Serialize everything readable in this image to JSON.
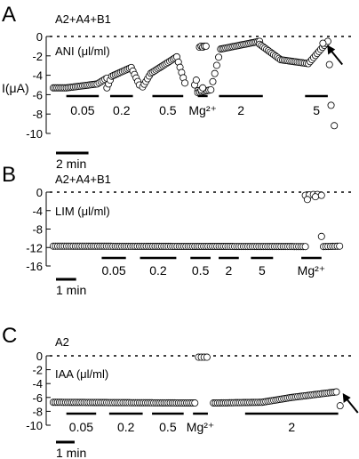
{
  "chart_data": [
    {
      "type": "scatter",
      "panel_letter": "A",
      "group_label": "A2+A4+B1",
      "drug_label": "ANI (μl/ml)",
      "ylabel": "I(μA)",
      "yticks": [
        "0",
        "-2",
        "-4",
        "-6",
        "-8",
        "-10"
      ],
      "ylim": [
        -10,
        0
      ],
      "time_max_min": 18,
      "scale_bar_label": "2 min",
      "scale_bar_min": 2,
      "zero_line": true,
      "bars": [
        {
          "label": "0.05",
          "start_min": 0.8,
          "end_min": 2.8
        },
        {
          "label": "0.2",
          "start_min": 3.5,
          "end_min": 4.9
        },
        {
          "label": "0.5",
          "start_min": 6.1,
          "end_min": 8.0
        },
        {
          "label": "Mg²⁺",
          "start_min": 8.9,
          "end_min": 9.5
        },
        {
          "label": "2",
          "start_min": 10.2,
          "end_min": 12.9
        },
        {
          "label": "5",
          "start_min": 15.5,
          "end_min": 16.9
        }
      ],
      "series": [
        {
          "segments": [
            {
              "x": [
                0.0,
                0.8,
                2.7,
                3.3
              ],
              "y": [
                -5.3,
                -5.3,
                -4.9,
                -4.3
              ]
            },
            {
              "x": [
                3.3,
                3.6,
                4.8,
                5.3
              ],
              "y": [
                -5.3,
                -4.1,
                -3.2,
                -5.0
              ]
            },
            {
              "x": [
                5.5,
                6.0,
                7.6,
                8.1
              ],
              "y": [
                -5.2,
                -3.8,
                -2.1,
                -4.8
              ]
            },
            {
              "x": [
                8.7,
                8.8,
                8.9
              ],
              "y": [
                -5.0,
                -4.5,
                -5.6
              ]
            },
            {
              "x": [
                8.9,
                9.7,
                10.3,
                12.7
              ],
              "y": [
                -5.8,
                -5.5,
                -1.3,
                -0.5
              ]
            },
            {
              "x": [
                12.7,
                14.0,
                15.7,
                16.9
              ],
              "y": [
                -0.8,
                -2.4,
                -2.8,
                -0.5
              ]
            }
          ],
          "extra_points": [
            {
              "x": 9.0,
              "y": -1.1
            },
            {
              "x": 9.1,
              "y": -1.0
            },
            {
              "x": 9.2,
              "y": -1.1
            },
            {
              "x": 9.3,
              "y": -1.0
            },
            {
              "x": 9.4,
              "y": -1.0
            },
            {
              "x": 9.1,
              "y": -5.5
            },
            {
              "x": 9.2,
              "y": -5.3
            },
            {
              "x": 16.6,
              "y": -0.7
            },
            {
              "x": 17.0,
              "y": -2.9
            },
            {
              "x": 17.1,
              "y": -7.1
            },
            {
              "x": 17.3,
              "y": -9.2
            }
          ]
        }
      ],
      "arrow": {
        "x_min": 16.7,
        "y": -0.6
      }
    },
    {
      "type": "scatter",
      "panel_letter": "B",
      "group_label": "A2+A4+B1",
      "drug_label": "LIM (μl/ml)",
      "yticks": [
        "0",
        "-4",
        "-8",
        "-12",
        "-16"
      ],
      "ylim": [
        -16,
        0
      ],
      "time_max_min": 14.5,
      "scale_bar_label": "1 min",
      "scale_bar_min": 1,
      "zero_line": true,
      "bars": [
        {
          "label": "0.05",
          "start_min": 2.4,
          "end_min": 3.6
        },
        {
          "label": "0.2",
          "start_min": 4.3,
          "end_min": 6.1
        },
        {
          "label": "0.5",
          "start_min": 6.8,
          "end_min": 7.8
        },
        {
          "label": "2",
          "start_min": 8.2,
          "end_min": 9.2
        },
        {
          "label": "5",
          "start_min": 9.8,
          "end_min": 10.9
        },
        {
          "label": "Mg²⁺",
          "start_min": 12.3,
          "end_min": 13.3
        }
      ],
      "series": [
        {
          "segments": [
            {
              "x": [
                0.0,
                12.5
              ],
              "y": [
                -11.7,
                -11.8
              ]
            },
            {
              "x": [
                13.4,
                14.2
              ],
              "y": [
                -11.8,
                -11.7
              ]
            }
          ],
          "extra_points": [
            {
              "x": 12.5,
              "y": -0.7
            },
            {
              "x": 12.7,
              "y": -0.6
            },
            {
              "x": 12.9,
              "y": -0.5
            },
            {
              "x": 13.1,
              "y": -0.5
            },
            {
              "x": 13.3,
              "y": -0.7
            },
            {
              "x": 12.6,
              "y": -1.6
            },
            {
              "x": 13.0,
              "y": -1.0
            },
            {
              "x": 13.3,
              "y": -9.6
            }
          ]
        }
      ]
    },
    {
      "type": "scatter",
      "panel_letter": "C",
      "group_label": "A2",
      "drug_label": "IAA (μl/ml)",
      "yticks": [
        "0",
        "-2",
        "-4",
        "-6",
        "-8",
        "-10"
      ],
      "ylim": [
        -10,
        0
      ],
      "time_max_min": 15.7,
      "scale_bar_label": "1 min",
      "scale_bar_min": 1,
      "zero_line": true,
      "bars": [
        {
          "label": "0.05",
          "start_min": 0.7,
          "end_min": 2.3
        },
        {
          "label": "0.2",
          "start_min": 3.0,
          "end_min": 4.8
        },
        {
          "label": "0.5",
          "start_min": 5.3,
          "end_min": 7.0
        },
        {
          "label": "Mg²⁺",
          "start_min": 7.5,
          "end_min": 8.3
        },
        {
          "label": "2",
          "start_min": 10.3,
          "end_min": 15.3
        }
      ],
      "series": [
        {
          "segments": [
            {
              "x": [
                0.0,
                7.6
              ],
              "y": [
                -6.7,
                -6.8
              ]
            },
            {
              "x": [
                8.6,
                11.2,
                12.8,
                15.2
              ],
              "y": [
                -6.8,
                -6.7,
                -6.0,
                -5.2
              ]
            }
          ],
          "extra_points": [
            {
              "x": 7.8,
              "y": -0.2
            },
            {
              "x": 7.95,
              "y": -0.2
            },
            {
              "x": 8.1,
              "y": -0.2
            },
            {
              "x": 8.25,
              "y": -0.2
            },
            {
              "x": 15.4,
              "y": -7.2
            }
          ]
        }
      ],
      "arrow": {
        "x_min": 15.4,
        "y": -5.0
      }
    }
  ]
}
